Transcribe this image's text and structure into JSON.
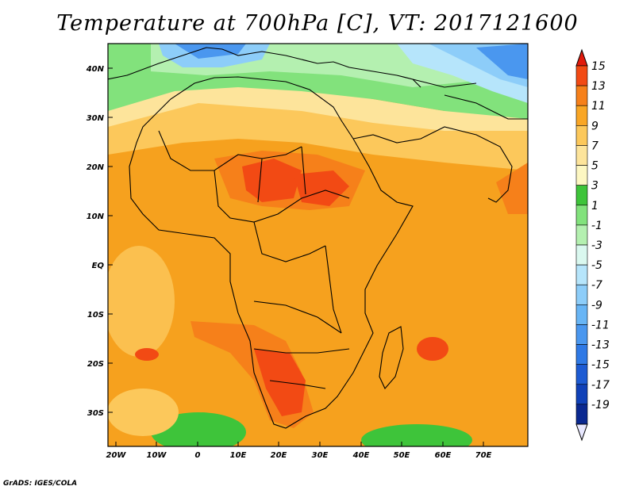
{
  "title": "Temperature at 700hPa [C], VT: 2017121600",
  "credit": "GrADS: IGES/COLA",
  "map": {
    "lon_range": [
      -22,
      81
    ],
    "lat_range": [
      -37,
      45
    ],
    "lon_ticks": [
      "20W",
      "10W",
      "0",
      "10E",
      "20E",
      "30E",
      "40E",
      "50E",
      "60E",
      "70E"
    ],
    "lat_ticks": [
      "40N",
      "30N",
      "20N",
      "10N",
      "EQ",
      "10S",
      "20S",
      "30S"
    ],
    "ocean_fill": "#f6a11e",
    "land_fill": "#f58f1c"
  },
  "colorbar": {
    "labels": [
      "15",
      "13",
      "11",
      "9",
      "7",
      "5",
      "3",
      "1",
      "-1",
      "-3",
      "-5",
      "-7",
      "-9",
      "-11",
      "-13",
      "-15",
      "-17",
      "-19"
    ],
    "colors": [
      "#e11a0c",
      "#f24a14",
      "#f6801a",
      "#f9a625",
      "#fcc85b",
      "#fde49b",
      "#fdf7c2",
      "#3ec43a",
      "#82e27c",
      "#b4f0b0",
      "#daf8ef",
      "#b6e5fb",
      "#8dcdf9",
      "#68b5f5",
      "#4a97ef",
      "#2f79e5",
      "#1d5bd3",
      "#1041b8",
      "#0a2890",
      "#e8e8ff"
    ]
  }
}
